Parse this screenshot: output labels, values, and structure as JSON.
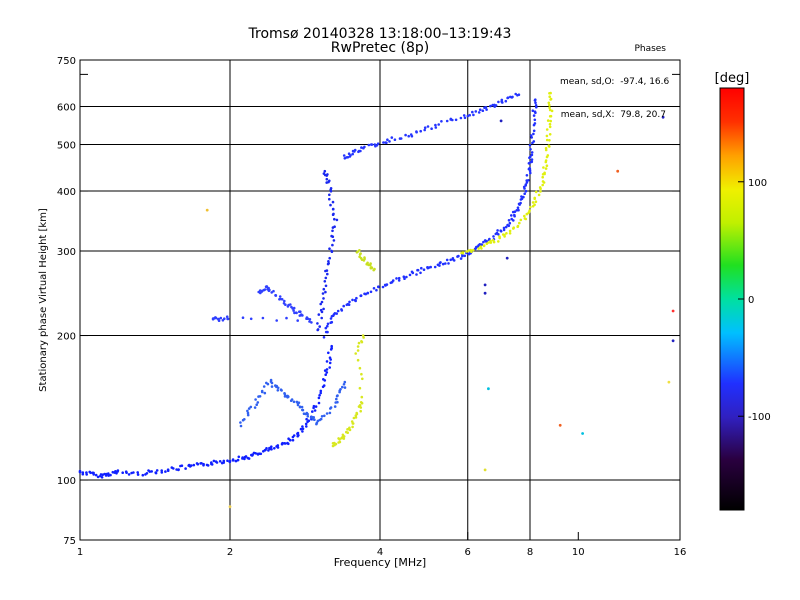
{
  "header": {
    "title_line1": "Tromsø 20140328 13:18:00–13:19:43",
    "title_line2": "RwPretec (8p)"
  },
  "stats": {
    "heading": "Phases",
    "line_o": "mean, sd,O:  -97.4, 16.6",
    "line_x": "mean, sd,X:  79.8, 20.7"
  },
  "chart_data": {
    "type": "scatter",
    "xlabel": "Frequency [MHz]",
    "ylabel": "Stationary phase Virtual Height [km]",
    "x_scale": "log",
    "y_scale": "log",
    "xlim": [
      1,
      16
    ],
    "ylim": [
      75,
      750
    ],
    "x_ticks": [
      1,
      2,
      4,
      6,
      8,
      10,
      16
    ],
    "x_gridlines": [
      2,
      4,
      6,
      8
    ],
    "y_ticks": [
      75,
      100,
      200,
      300,
      400,
      500,
      600,
      700,
      750
    ],
    "y_tick_labels": [
      "75",
      "100",
      "200",
      "300",
      "400",
      "500",
      "600",
      "750"
    ],
    "y_gridlines": [
      100,
      200,
      300,
      400,
      500,
      600
    ],
    "grid": true,
    "colorbar": {
      "label": "[deg]",
      "range": [
        -180,
        180
      ],
      "ticks": [
        100,
        0,
        -100
      ],
      "tick_labels": [
        "100",
        "0",
        "-100"
      ]
    },
    "series": [
      {
        "color": "#1020ff",
        "phase": -110,
        "points": [
          [
            1.0,
            104
          ],
          [
            1.05,
            103
          ],
          [
            1.1,
            102
          ],
          [
            1.15,
            103
          ],
          [
            1.2,
            104
          ],
          [
            1.3,
            103
          ],
          [
            1.4,
            104
          ],
          [
            1.5,
            105
          ],
          [
            1.6,
            106
          ],
          [
            1.7,
            107
          ],
          [
            1.8,
            108
          ],
          [
            1.9,
            109
          ],
          [
            2.0,
            110
          ],
          [
            2.1,
            111
          ],
          [
            2.2,
            112
          ],
          [
            2.3,
            114
          ],
          [
            2.4,
            116
          ],
          [
            2.5,
            117
          ],
          [
            2.6,
            120
          ],
          [
            2.7,
            123
          ],
          [
            2.8,
            128
          ],
          [
            2.9,
            135
          ],
          [
            3.0,
            145
          ],
          [
            3.1,
            160
          ],
          [
            3.15,
            175
          ],
          [
            3.2,
            190
          ]
        ]
      },
      {
        "color": "#2030ff",
        "phase": -105,
        "points": [
          [
            3.1,
            200
          ],
          [
            3.2,
            215
          ],
          [
            3.3,
            225
          ],
          [
            3.5,
            235
          ],
          [
            3.7,
            242
          ],
          [
            3.9,
            250
          ],
          [
            4.2,
            258
          ],
          [
            4.5,
            265
          ],
          [
            4.8,
            272
          ],
          [
            5.1,
            278
          ],
          [
            5.4,
            284
          ],
          [
            5.7,
            290
          ],
          [
            6.0,
            297
          ],
          [
            6.3,
            305
          ],
          [
            6.6,
            315
          ],
          [
            6.9,
            327
          ],
          [
            7.2,
            340
          ],
          [
            7.4,
            355
          ],
          [
            7.6,
            372
          ],
          [
            7.8,
            395
          ],
          [
            7.9,
            420
          ],
          [
            8.0,
            450
          ],
          [
            8.05,
            480
          ],
          [
            8.1,
            520
          ],
          [
            8.15,
            580
          ],
          [
            8.2,
            620
          ]
        ]
      },
      {
        "color": "#1a28f0",
        "phase": -100,
        "points": [
          [
            3.0,
            205
          ],
          [
            3.05,
            225
          ],
          [
            3.1,
            250
          ],
          [
            3.15,
            280
          ],
          [
            3.2,
            310
          ],
          [
            3.25,
            345
          ],
          [
            3.2,
            380
          ],
          [
            3.15,
            420
          ],
          [
            3.1,
            440
          ]
        ]
      },
      {
        "color": "#2535ff",
        "phase": -100,
        "points": [
          [
            3.4,
            470
          ],
          [
            3.5,
            480
          ],
          [
            3.7,
            490
          ],
          [
            3.9,
            500
          ],
          [
            4.2,
            510
          ],
          [
            4.6,
            525
          ],
          [
            5.0,
            540
          ],
          [
            5.5,
            560
          ],
          [
            6.0,
            575
          ],
          [
            6.4,
            590
          ],
          [
            6.8,
            605
          ],
          [
            7.2,
            620
          ],
          [
            7.6,
            635
          ]
        ]
      },
      {
        "color": "#3040ff",
        "phase": -95,
        "points": [
          [
            2.3,
            245
          ],
          [
            2.35,
            252
          ],
          [
            2.4,
            248
          ],
          [
            2.5,
            240
          ],
          [
            2.6,
            232
          ],
          [
            2.7,
            225
          ],
          [
            2.8,
            220
          ],
          [
            2.9,
            215
          ],
          [
            2.0,
            218
          ],
          [
            1.9,
            216
          ],
          [
            1.85,
            217
          ]
        ]
      },
      {
        "color": "#3060f0",
        "phase": -60,
        "points": [
          [
            2.1,
            130
          ],
          [
            2.2,
            140
          ],
          [
            2.3,
            150
          ],
          [
            2.4,
            160
          ],
          [
            2.5,
            155
          ],
          [
            2.6,
            150
          ],
          [
            2.7,
            145
          ],
          [
            2.8,
            140
          ],
          [
            2.9,
            135
          ],
          [
            3.0,
            132
          ],
          [
            3.2,
            140
          ],
          [
            3.3,
            150
          ],
          [
            3.4,
            160
          ]
        ]
      },
      {
        "color": "#e0f010",
        "phase": 90,
        "points": [
          [
            5.8,
            296
          ],
          [
            6.2,
            302
          ],
          [
            6.6,
            310
          ],
          [
            7.0,
            320
          ],
          [
            7.4,
            333
          ],
          [
            7.8,
            350
          ],
          [
            8.1,
            370
          ],
          [
            8.3,
            395
          ],
          [
            8.5,
            425
          ],
          [
            8.6,
            460
          ],
          [
            8.7,
            500
          ],
          [
            8.75,
            550
          ],
          [
            8.8,
            600
          ],
          [
            8.8,
            640
          ]
        ]
      },
      {
        "color": "#d8e820",
        "phase": 85,
        "points": [
          [
            3.2,
            118
          ],
          [
            3.3,
            120
          ],
          [
            3.4,
            124
          ],
          [
            3.5,
            130
          ],
          [
            3.6,
            138
          ],
          [
            3.7,
            145
          ],
          [
            3.6,
            185
          ],
          [
            3.7,
            200
          ]
        ]
      },
      {
        "color": "#c8e020",
        "phase": 80,
        "points": [
          [
            3.6,
            300
          ],
          [
            3.7,
            290
          ],
          [
            3.8,
            280
          ],
          [
            3.9,
            275
          ]
        ]
      }
    ],
    "outliers": [
      {
        "x": 1.8,
        "y": 365,
        "color": "#f0c030"
      },
      {
        "x": 2.0,
        "y": 88,
        "color": "#f0d050"
      },
      {
        "x": 12.0,
        "y": 440,
        "color": "#f06020"
      },
      {
        "x": 14.8,
        "y": 570,
        "color": "#2020c0"
      },
      {
        "x": 15.5,
        "y": 225,
        "color": "#ff3030"
      },
      {
        "x": 15.5,
        "y": 195,
        "color": "#2020c0"
      },
      {
        "x": 15.2,
        "y": 160,
        "color": "#f0e040"
      },
      {
        "x": 6.5,
        "y": 105,
        "color": "#e0e030"
      },
      {
        "x": 6.5,
        "y": 255,
        "color": "#2020c0"
      },
      {
        "x": 6.5,
        "y": 245,
        "color": "#2020c0"
      },
      {
        "x": 6.6,
        "y": 155,
        "color": "#00c0e0"
      },
      {
        "x": 10.2,
        "y": 125,
        "color": "#00c0e0"
      },
      {
        "x": 9.2,
        "y": 130,
        "color": "#f06020"
      },
      {
        "x": 7.2,
        "y": 290,
        "color": "#2020c0"
      },
      {
        "x": 7.0,
        "y": 560,
        "color": "#2020c0"
      }
    ]
  }
}
